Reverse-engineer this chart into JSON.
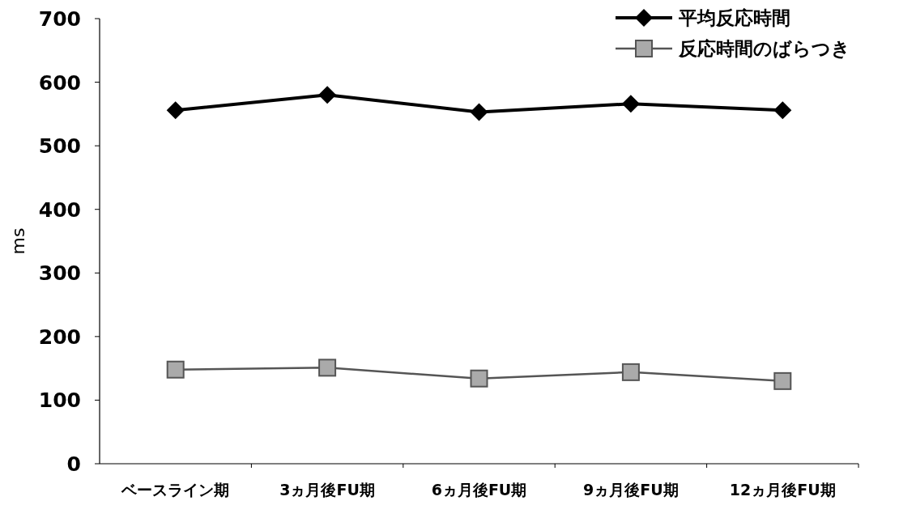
{
  "chart_data": {
    "type": "line",
    "ylabel": "ms",
    "categories": [
      "ベースライン期",
      "3ヵ月後FU期",
      "6ヵ月後FU期",
      "9ヵ月後FU期",
      "12ヵ月後FU期"
    ],
    "series": [
      {
        "name": "平均反応時間",
        "color": "#000000",
        "marker": "diamond",
        "values": [
          556,
          580,
          553,
          566,
          556
        ]
      },
      {
        "name": "反応時間のばらつき",
        "color": "#555555",
        "marker": "square",
        "values": [
          148,
          151,
          134,
          144,
          130
        ]
      }
    ],
    "ylim": [
      0,
      700
    ],
    "yticks": [
      0,
      100,
      200,
      300,
      400,
      500,
      600,
      700
    ],
    "grid": false,
    "legend": "top right"
  }
}
